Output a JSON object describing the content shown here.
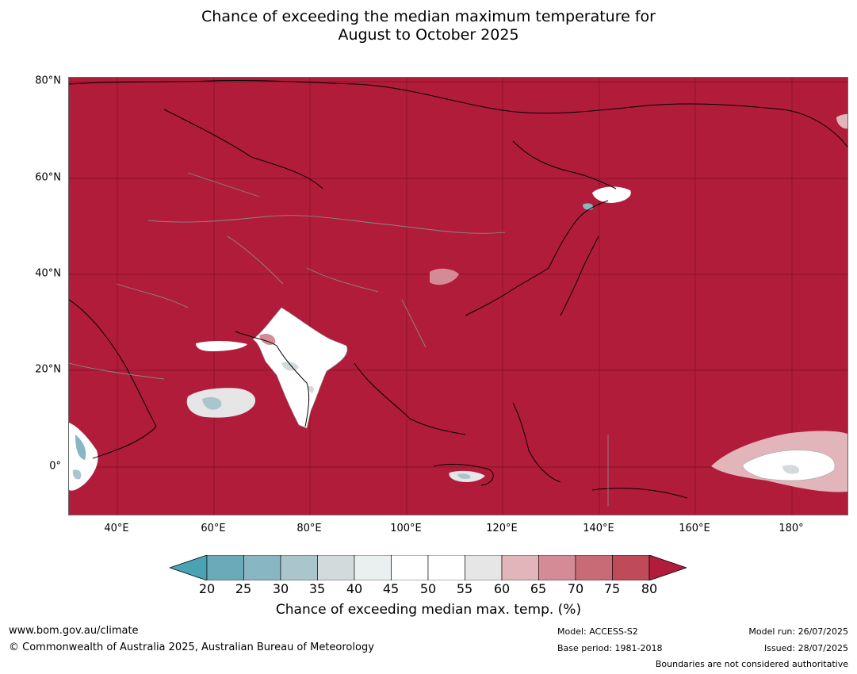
{
  "title": {
    "line1": "Chance of exceeding the median maximum temperature for",
    "line2": "August to October 2025"
  },
  "map": {
    "lat_labels": [
      "80°N",
      "60°N",
      "40°N",
      "20°N",
      "0°"
    ],
    "lon_labels": [
      "40°E",
      "60°E",
      "80°E",
      "100°E",
      "120°E",
      "140°E",
      "160°E",
      "180°"
    ],
    "background_category": ">80% chance",
    "colors": {
      "ocean_land_high": "#b11c3a",
      "low_white": "#ffffff",
      "light_blue": "#d6e3e6",
      "coastline": "#000000",
      "border": "#888888"
    }
  },
  "colorbar": {
    "ticks": [
      "20",
      "25",
      "30",
      "35",
      "40",
      "45",
      "50",
      "55",
      "60",
      "65",
      "70",
      "75",
      "80"
    ],
    "colors": [
      "#4aa3b3",
      "#6babb9",
      "#88b6c3",
      "#aac5cc",
      "#d2dadc",
      "#eaeff0",
      "#ffffff",
      "#ffffff",
      "#e6e6e6",
      "#e2b5bb",
      "#d48b95",
      "#c96b77",
      "#be4a5a",
      "#b11c3a"
    ],
    "label": "Chance of exceeding median max. temp. (%)"
  },
  "footer": {
    "website": "www.bom.gov.au/climate",
    "copyright": "© Commonwealth of Australia 2025, Australian Bureau of Meteorology",
    "model": "Model: ACCESS-S2",
    "base_period": "Base period: 1981-2018",
    "model_run": "Model run: 26/07/2025",
    "issued": "Issued: 28/07/2025",
    "disclaimer": "Boundaries are not considered authoritative"
  }
}
